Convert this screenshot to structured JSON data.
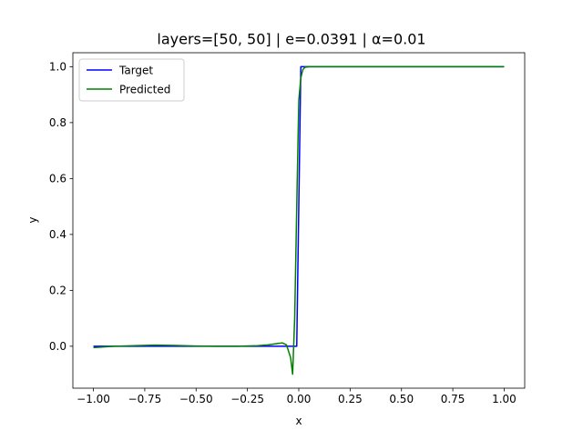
{
  "chart_data": {
    "type": "line",
    "title": "layers=[50, 50] | e=0.0391 | α=0.01",
    "xlabel": "x",
    "ylabel": "y",
    "xlim": [
      -1.1,
      1.1
    ],
    "ylim": [
      -0.15,
      1.05
    ],
    "xticks": [
      -1.0,
      -0.75,
      -0.5,
      -0.25,
      0.0,
      0.25,
      0.5,
      0.75,
      1.0
    ],
    "xtick_labels": [
      "−1.00",
      "−0.75",
      "−0.50",
      "−0.25",
      "0.00",
      "0.25",
      "0.50",
      "0.75",
      "1.00"
    ],
    "yticks": [
      0.0,
      0.2,
      0.4,
      0.6,
      0.8,
      1.0
    ],
    "ytick_labels": [
      "0.0",
      "0.2",
      "0.4",
      "0.6",
      "0.8",
      "1.0"
    ],
    "grid": false,
    "legend_position": "top-left",
    "series": [
      {
        "name": "Target",
        "color": "#0000ff",
        "x": [
          -1.0,
          -0.01,
          -0.01,
          0.01,
          0.01,
          1.0
        ],
        "y": [
          0.0,
          0.0,
          0.0,
          1.0,
          1.0,
          1.0
        ]
      },
      {
        "name": "Predicted",
        "color": "#008000",
        "x": [
          -1.0,
          -0.9,
          -0.8,
          -0.7,
          -0.6,
          -0.5,
          -0.4,
          -0.3,
          -0.2,
          -0.15,
          -0.1,
          -0.08,
          -0.06,
          -0.04,
          -0.03,
          -0.02,
          -0.01,
          0.0,
          0.01,
          0.02,
          0.03,
          0.05,
          0.1,
          0.3,
          0.5,
          0.75,
          1.0
        ],
        "y": [
          -0.005,
          0.0,
          0.002,
          0.004,
          0.003,
          0.001,
          0.0,
          0.0,
          0.002,
          0.005,
          0.01,
          0.012,
          0.005,
          -0.04,
          -0.1,
          0.1,
          0.5,
          0.88,
          0.96,
          0.99,
          0.998,
          1.0,
          1.0,
          1.0,
          1.0,
          1.0,
          1.0
        ]
      }
    ]
  }
}
